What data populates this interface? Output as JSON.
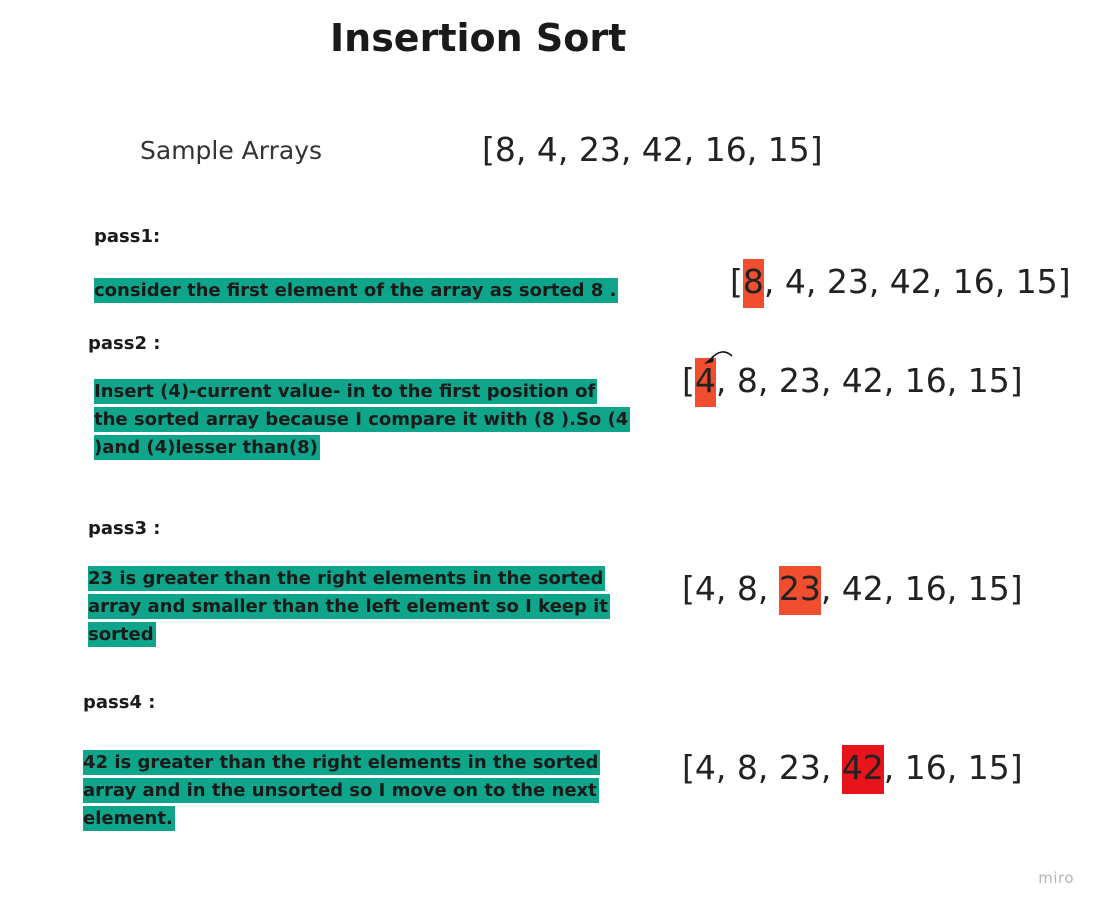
{
  "title": "Insertion Sort",
  "sample": {
    "label": "Sample Arrays",
    "array_text": "[8, 4, 23, 42, 16, 15]"
  },
  "passes": [
    {
      "label": "pass1:",
      "note": "consider the first element of the array  as sorted  8  .",
      "array": {
        "open": "[",
        "highlight": "8",
        "rest": ", 4, 23, 42, 16, 15]"
      }
    },
    {
      "label": "pass2 :",
      "note": " Insert (4)-current value- in to the first position of the sorted array because I  compare it with (8 ).So (4 )and (4)lesser than(8)",
      "array": {
        "open": "[",
        "highlight": "4",
        "rest": ", 8, 23, 42, 16, 15]"
      }
    },
    {
      "label": "pass3 :",
      "note": " 23 is greater than the right elements in the sorted array and smaller than the left element so I keep it sorted",
      "array": {
        "open": "[4, 8, ",
        "highlight": "23",
        "rest": ", 42, 16, 15]"
      }
    },
    {
      "label": "pass4 :",
      "note": " 42 is greater than the right elements in the sorted array and in the unsorted  so I move on to the next element.",
      "array": {
        "open": "[4, 8, 23, ",
        "highlight": "42",
        "rest": ", 16, 15]"
      }
    }
  ],
  "colors": {
    "note_highlight": "#0fa58a",
    "value_highlight": "#f04e2e",
    "value_highlight_strong": "#e8141c"
  },
  "watermark": "miro"
}
